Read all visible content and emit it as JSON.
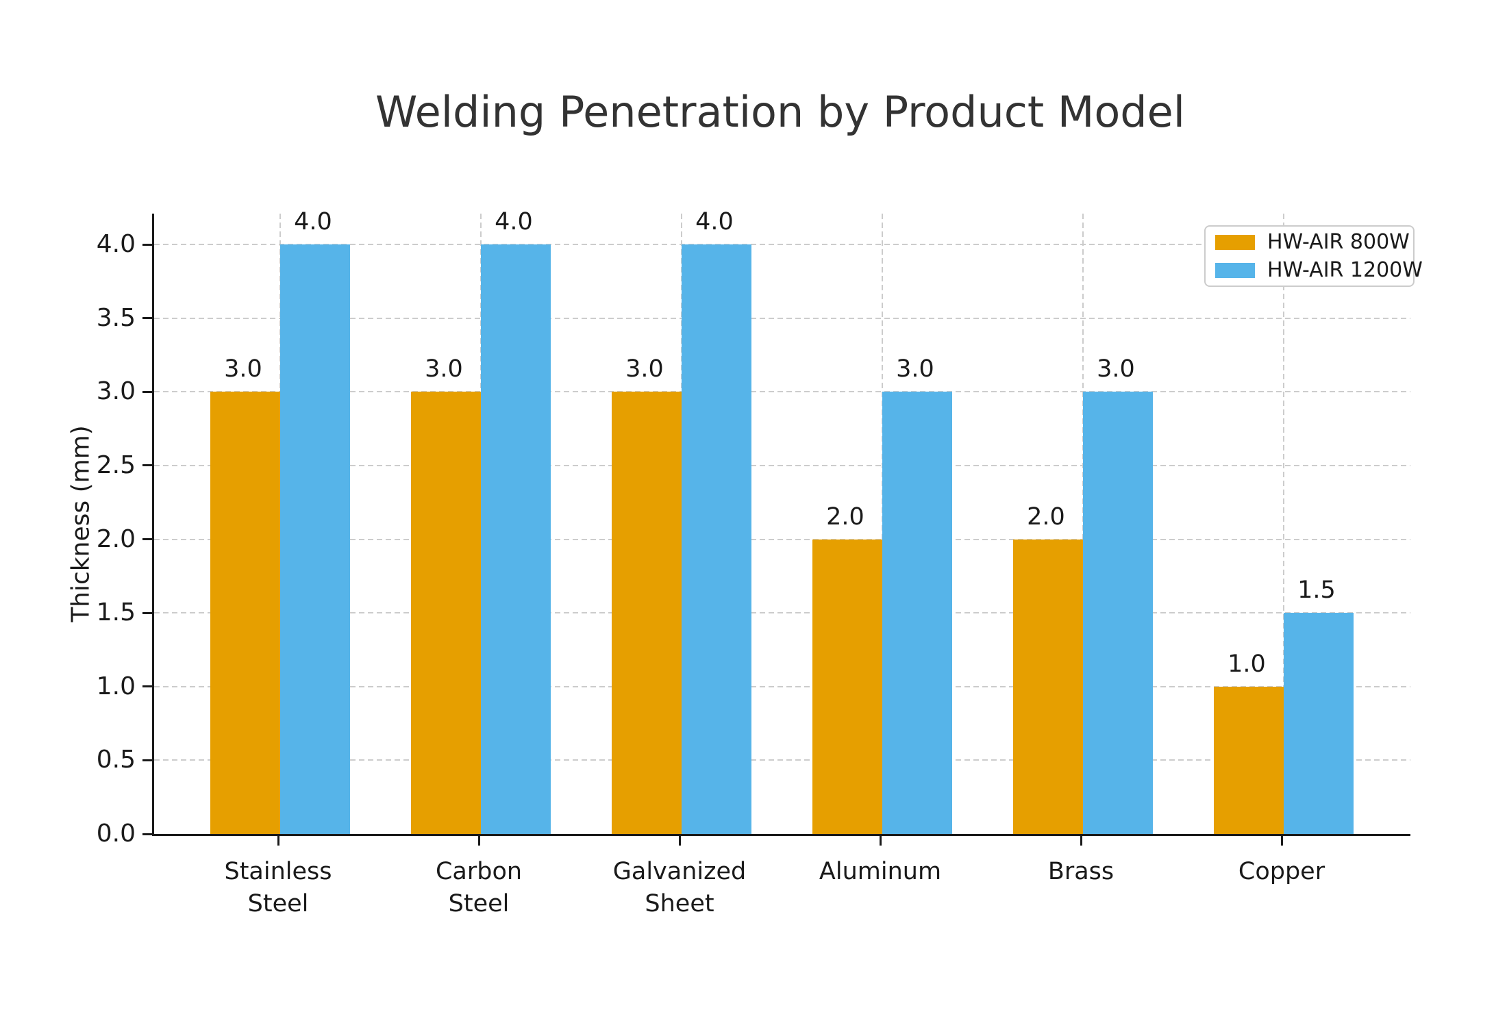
{
  "chart_data": {
    "type": "bar",
    "title": "Welding Penetration by Product Model",
    "ylabel": "Thickness (mm)",
    "xlabel": "",
    "categories": [
      "Stainless\nSteel",
      "Carbon\nSteel",
      "Galvanized\nSheet",
      "Aluminum",
      "Brass",
      "Copper"
    ],
    "series": [
      {
        "name": "HW-AIR 800W",
        "color": "#E69F00",
        "values": [
          3.0,
          3.0,
          3.0,
          2.0,
          2.0,
          1.0
        ]
      },
      {
        "name": "HW-AIR 1200W",
        "color": "#56B4E9",
        "values": [
          4.0,
          4.0,
          4.0,
          3.0,
          3.0,
          1.5
        ]
      }
    ],
    "y_ticks": [
      0.0,
      0.5,
      1.0,
      1.5,
      2.0,
      2.5,
      3.0,
      3.5,
      4.0
    ],
    "y_tick_labels": [
      "0.0",
      "0.5",
      "1.0",
      "1.5",
      "2.0",
      "2.5",
      "3.0",
      "3.5",
      "4.0"
    ],
    "ylim": [
      0,
      4.21
    ],
    "bar_value_labels": true,
    "grid": "dashed-both-directions",
    "legend_position": "upper-right",
    "colors": {
      "series_800w": "#E69F00",
      "series_1200w": "#56B4E9",
      "grid": "#cccccc",
      "spine": "#1a1a1a",
      "title": "#333333"
    }
  }
}
